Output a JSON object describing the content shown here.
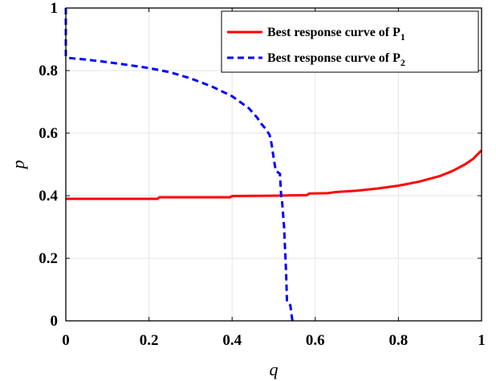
{
  "chart_data": {
    "type": "line",
    "title": "",
    "xlabel": "q",
    "ylabel": "p",
    "xlim": [
      0,
      1
    ],
    "ylim": [
      0,
      1
    ],
    "x_ticks": [
      0,
      0.2,
      0.4,
      0.6,
      0.8,
      1
    ],
    "y_ticks": [
      0,
      0.2,
      0.4,
      0.6,
      0.8,
      1
    ],
    "x_tick_labels": [
      "0",
      "0.2",
      "0.4",
      "0.6",
      "0.8",
      "1"
    ],
    "y_tick_labels": [
      "0",
      "0.2",
      "0.4",
      "0.6",
      "0.8",
      "1"
    ],
    "grid": true,
    "legend": "top-right",
    "series": [
      {
        "name": "Best response curve of P",
        "name_subscript": "1",
        "color": "#ff0000",
        "style": "solid",
        "points": [
          [
            0,
            0.39
          ],
          [
            0.1,
            0.39
          ],
          [
            0.22,
            0.39
          ],
          [
            0.225,
            0.395
          ],
          [
            0.3,
            0.395
          ],
          [
            0.395,
            0.395
          ],
          [
            0.4,
            0.399
          ],
          [
            0.5,
            0.4
          ],
          [
            0.58,
            0.402
          ],
          [
            0.585,
            0.407
          ],
          [
            0.63,
            0.408
          ],
          [
            0.65,
            0.412
          ],
          [
            0.7,
            0.416
          ],
          [
            0.75,
            0.423
          ],
          [
            0.8,
            0.432
          ],
          [
            0.85,
            0.445
          ],
          [
            0.9,
            0.463
          ],
          [
            0.93,
            0.479
          ],
          [
            0.96,
            0.5
          ],
          [
            0.98,
            0.518
          ],
          [
            0.99,
            0.532
          ],
          [
            1,
            0.545
          ]
        ]
      },
      {
        "name": "Best response curve of P",
        "name_subscript": "2",
        "color": "#0000ff",
        "style": "dashed",
        "points": [
          [
            0,
            1
          ],
          [
            0,
            0.845
          ],
          [
            0.01,
            0.84
          ],
          [
            0.05,
            0.835
          ],
          [
            0.1,
            0.827
          ],
          [
            0.15,
            0.818
          ],
          [
            0.2,
            0.808
          ],
          [
            0.25,
            0.795
          ],
          [
            0.3,
            0.775
          ],
          [
            0.35,
            0.75
          ],
          [
            0.4,
            0.718
          ],
          [
            0.44,
            0.68
          ],
          [
            0.46,
            0.65
          ],
          [
            0.47,
            0.63
          ],
          [
            0.48,
            0.615
          ],
          [
            0.49,
            0.595
          ],
          [
            0.495,
            0.565
          ],
          [
            0.5,
            0.52
          ],
          [
            0.505,
            0.48
          ],
          [
            0.515,
            0.47
          ],
          [
            0.518,
            0.4
          ],
          [
            0.52,
            0.385
          ],
          [
            0.525,
            0.3
          ],
          [
            0.53,
            0.15
          ],
          [
            0.532,
            0.06
          ],
          [
            0.54,
            0.05
          ],
          [
            0.545,
            0
          ]
        ]
      }
    ]
  },
  "colors": {
    "axis": "#000000",
    "grid": "#e6e6e6"
  }
}
